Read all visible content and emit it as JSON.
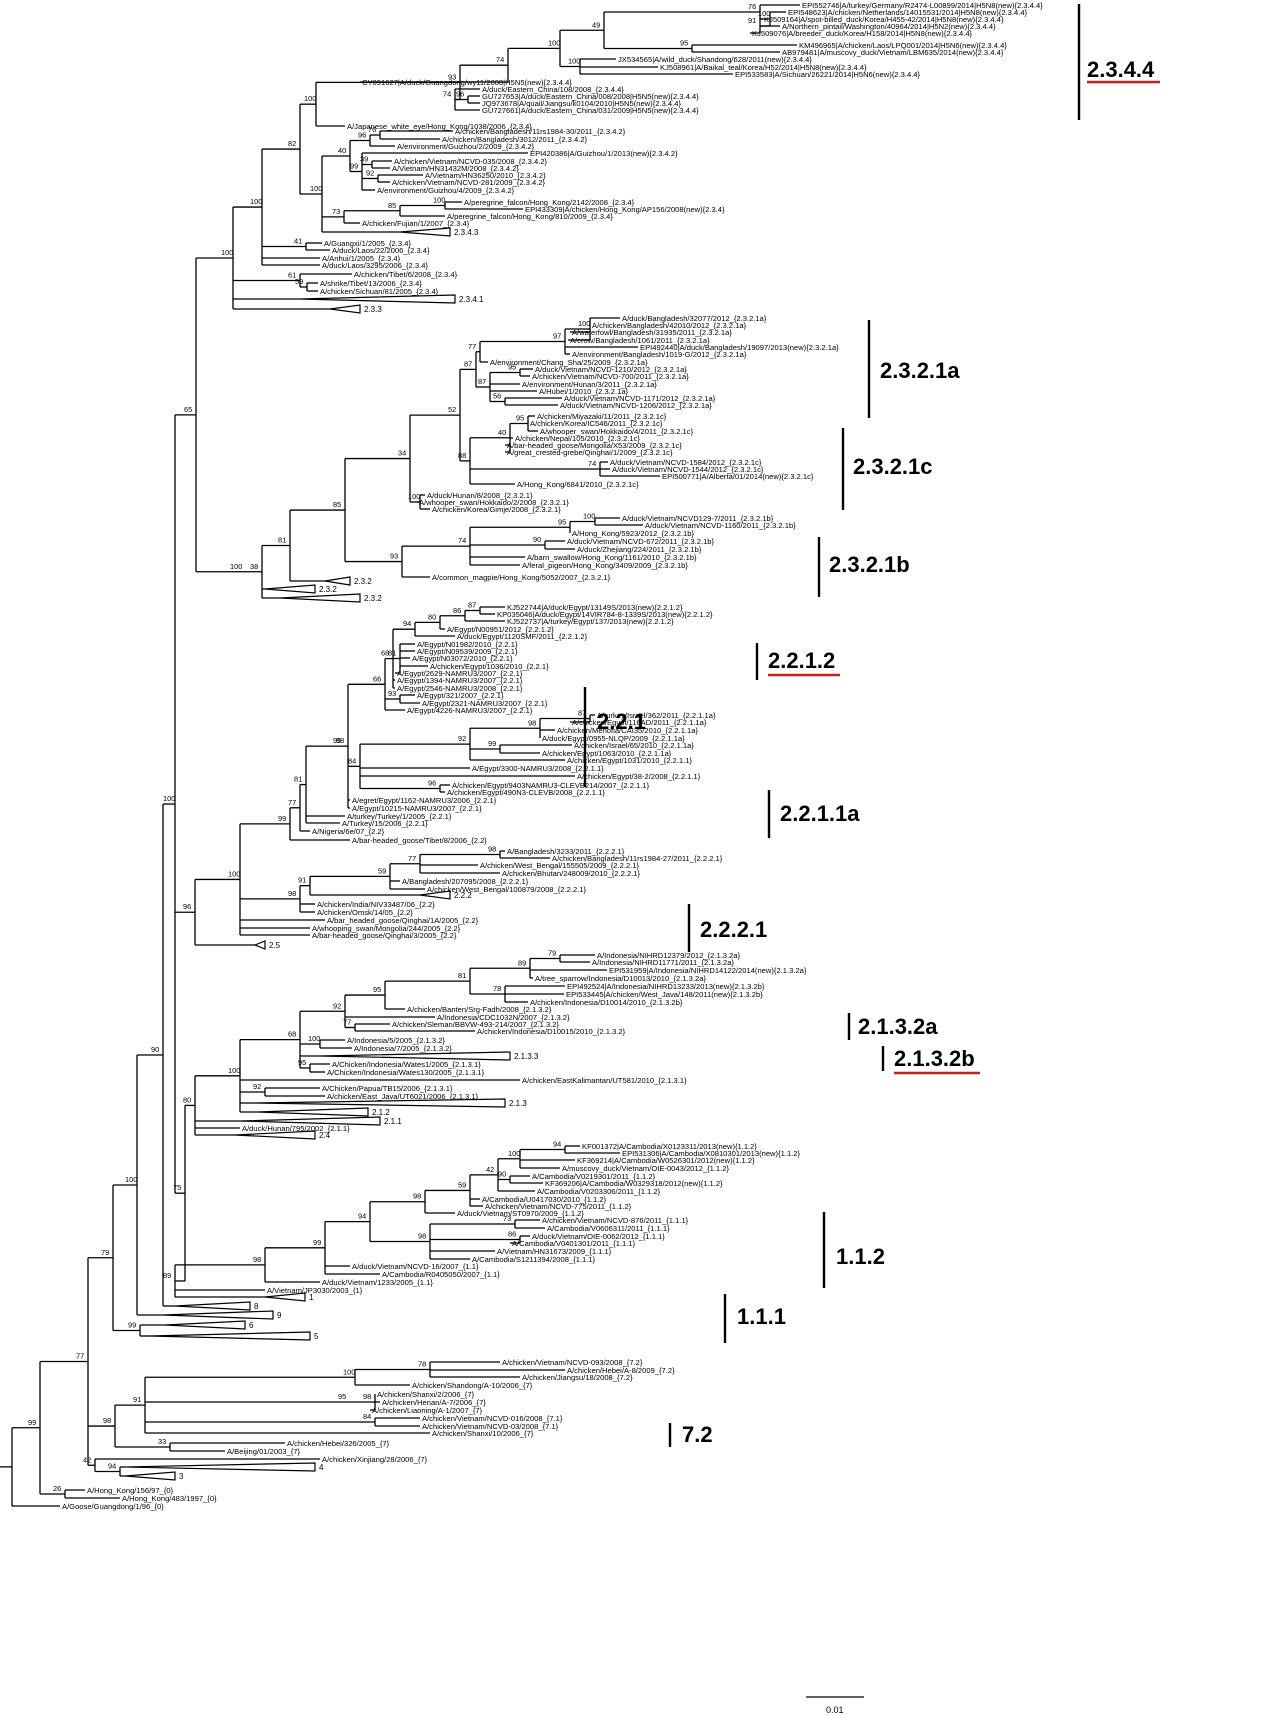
{
  "leaves": {
    "EPI552746": "EPI552746|A/turkey/Germany/R2474-L00899/2014|H5N8(new){2.3.4.4}",
    "EPI548623": "EPI548623|A/chicken/Netherlands/14015531/2014|H5N8(new){2.3.4.4}",
    "KJ509164": "KJ509164|A/spot-billed_duck/Korea/H455-42/2014|H5N8(new){2.3.4.4}",
    "N_pintail": "A/Northern_pintail/Washington/40964/2014|H5N2(new){2.3.4.4}",
    "KJ509076": "KJ509076|A/breeder_duck/Korea/H158/2014|H5N8(new){2.3.4.4}",
    "KM496965": "KM496965|A/chicken/Laos/LPQ001/2014|H5N6(new){2.3.4.4}",
    "AB979481": "AB979481|A/muscovy_duck/Vietnam/LBM635/2014(new){2.3.4.4}",
    "JX534565": "JX534565|A/wild_duck/Shandong/628/2011(new){2.3.4.4}",
    "KJ508961": "KJ508961|A/Baikal_teal/Korea/H52/2014|H5N8(new){2.3.4.4}",
    "EPI533583": "EPI533583|A/Sichuan/26221/2014|H5N6(new){2.3.4.4}",
    "CY091627": "CY091627|A/duck/Guangdong/wy11/2008|H5N5(new){2.3.4.4}",
    "duck_EChina_108": "A/duck/Eastern_China/108/2008_{2.3.4.4}",
    "GU727653": "GU727653|A/duck/Eastern_China/008/2008|H5N5(new){2.3.4.4}",
    "JQ973678": "JQ973678|A/quail/Jiangsu/k0104/2010|H5N5(new){2.3.4.4}",
    "GU727661": "GU727661|A/duck/Eastern_China/031/2009|H5N5(new){2.3.4.4}",
    "jwe_HK_1038": "A/Japanese_white_eye/Hong_Kong/1038/2006_{2.3.4}",
    "Bangladesh_11rs": "A/chicken/Bangladesh/11rs1984-30/2011_{2.3.4.2}",
    "Bangladesh_3012": "A/chicken/Bangladesh/3012/2011_{2.3.4.2}",
    "env_Guizhou_2": "A/environment/Guizhou/2/2009_{2.3.4.2}",
    "EPI420386": "EPI420386|A/Guizhou/1/2013(new){2.3.4.2}",
    "VN_NCVD035": "A/chicken/Vietnam/NCVD-035/2008_{2.3.4.2}",
    "VN_HN31432M": "A/Vietnam/HN31432M/2008_{2.3.4.2}",
    "VN_HN36250": "A/Vietnam/HN36250/2010_{2.3.4.2}",
    "VN_NCVD281": "A/chicken/Vietnam/NCVD-281/2009_{2.3.4.2}",
    "env_Guizhou_4": "A/environment/Guizhou/4/2009_{2.3.4.2}",
    "pf_HK_2142": "A/peregrine_falcon/Hong_Kong/2142/2008_{2.3.4}",
    "EPI433309": "EPI433309|A/chicken/Hong_Kong/AP156/2008(new){2.3.4}",
    "pf_HK_810": "A/peregrine_falcon/Hong_Kong/810/2009_{2.3.4}",
    "Fujian_1": "A/chicken/Fujian/1/2007_{2.3.4}",
    "c_2343": "2.3.4.3",
    "Guangxi_1": "A/Guangxi/1/2005_{2.3.4}",
    "Laos_22": "A/duck/Laos/22/2006_{2.3.4}",
    "Anhui_1": "A/Anhui/1/2005_{2.3.4}",
    "Laos_3295": "A/duck/Laos/3295/2006_{2.3.4}",
    "Tibet_6": "A/chicken/Tibet/6/2008_{2.3.4}",
    "shrike_Tibet": "A/shrike/Tibet/13/2006_{2.3.4}",
    "Sichuan_81": "A/chicken/Sichuan/81/2005_{2.3.4}",
    "c_2341": "2.3.4.1",
    "c_233": "2.3.3",
    "BD_32077": "A/duck/Bangladesh/32077/2012_{2.3.2.1a}",
    "BD_42010": "A/chicken/Bangladesh/42010/2012_{2.3.2.1a}",
    "BD_wf_31935": "A/waterfowl/Bangladesh/31935/2011_{2.3.2.1a}",
    "BD_crow_1061": "A/crow/Bangladesh/1061/2011_{2.3.2.1a}",
    "EPI492440": "EPI492440|A/duck/Bangladesh/19097/2013(new){2.3.2.1a}",
    "BD_env_1019": "A/environment/Bangladesh/1019-G/2012_{2.3.2.1a}",
    "env_ChangSha": "A/environment/Chang_Sha/25/2009_{2.3.2.1a}",
    "VN_NCVD1210": "A/duck/Vietnam/NCVD-1210/2012_{2.3.2.1a}",
    "VN_NCVD700": "A/chicken/Vietnam/NCVD-700/2011_{2.3.2.1a}",
    "env_Hunan_3": "A/environment/Hunan/3/2011_{2.3.2.1a}",
    "Hubei_1": "A/Hubei/1/2010_{2.3.2.1a}",
    "VN_NCVD1171": "A/duck/Vietnam/NCVD-1171/2012_{2.3.2.1a}",
    "VN_NCVD1206": "A/duck/Vietnam/NCVD-1206/2012_{2.3.2.1a}",
    "Miyazaki_11": "A/chicken/Miyazaki/11/2011_{2.3.2.1c}",
    "Korea_IC546": "A/chicken/Korea/IC546/2011_{2.3.2.1c}",
    "ws_Hokkaido_4": "A/whooper_swan/Hokkaido/4/2011_{2.3.2.1c}",
    "Nepal_105": "A/chicken/Nepal/105/2010_{2.3.2.1c}",
    "bhg_Mongolia_X53": "A/bar-headed_goose/Mongolia/X53/2009_{2.3.2.1c}",
    "gcg_Qinghai_1": "A/great_crested-grebe/Qinghai/1/2009_{2.3.2.1c}",
    "VN_NCVD1584": "A/duck/Vietnam/NCVD-1584/2012_{2.3.2.1c}",
    "VN_NCVD1544": "A/duck/Vietnam/NCVD-1544/2012_{2.3.2.1c}",
    "EPI500771": "EPI500771|A/Alberta/01/2014(new){2.3.2.1c}",
    "HK_6841": "A/Hong_Kong/6841/2010_{2.3.2.1c}",
    "Hunan_8": "A/duck/Hunan/8/2008_{2.3.2.1}",
    "ws_Hokkaido_2": "A/whooper_swan/Hokkaido/2/2008_{2.3.2.1}",
    "Korea_Gimje": "A/chicken/Korea/Gimje/2008_{2.3.2.1}",
    "VN_NCVD129": "A/duck/Vietnam/NCVD129-7/2011_{2.3.2.1b}",
    "VN_NCVD1160": "A/duck/Vietnam/NCVD-1160/2011_{2.3.2.1b}",
    "HK_5923": "A/Hong_Kong/5923/2012_{2.3.2.1b}",
    "VN_NCVD672": "A/duck/Vietnam/NCVD-672/2011_{2.3.2.1b}",
    "Zhejiang_224": "A/duck/Zhejiang/224/2011_{2.3.2.1b}",
    "bs_HK_1161": "A/barn_swallow/Hong_Kong/1161/2010_{2.3.2.1b}",
    "fp_HK_3409": "A/feral_pigeon/Hong_Kong/3409/2009_{2.3.2.1b}",
    "cm_HK_5052": "A/common_magpie/Hong_Kong/5052/2007_{2.3.2.1}",
    "c_232a": "2.3.2",
    "c_232b": "2.3.2",
    "c_232c": "2.3.2",
    "KJ522744": "KJ522744|A/duck/Egypt/13149S/2013(new){2.2.1.2}",
    "KP035046": "KP035046|A/duck/Egypt/14VIR784-8-1339S/2013(new){2.2.1.2}",
    "KJ522737": "KJ522737|A/turkey/Egypt/137/2013(new){2.2.1.2}",
    "EG_N00951": "A/Egypt/N00951/2012_{2.2.1.2}",
    "EG_1120SMF": "A/duck/Egypt/1120SMF/2011_{2.2.1.2}",
    "EG_N01982": "A/Egypt/N01982/2010_{2.2.1}",
    "EG_N09539": "A/Egypt/N09539/2009_{2.2.1}",
    "EG_N03072": "A/Egypt/N03072/2010_{2.2.1}",
    "EG_1036": "A/chicken/Egypt/1036/2010_{2.2.1}",
    "EG_2629": "A/Egypt/2629-NAMRU3/2007_{2.2.1}",
    "EG_1394": "A/Egypt/1394-NAMRU3/2007_{2.2.1}",
    "EG_2546": "A/Egypt/2546-NAMRU3/2008_{2.2.1}",
    "EG_321": "A/Egypt/321/2007_{2.2.1}",
    "EG_2321": "A/Egypt/2321-NAMRU3/2007_{2.2.1}",
    "EG_4226": "A/Egypt/4226-NAMRU3/2007_{2.2.1}",
    "IL_362": "A/turkey/Israel/362/2011_{2.2.1.1a}",
    "EG_116AD": "A/chicken/Egypt/116AD/2011_{2.2.1.1a}",
    "EG_Menofia": "A/chicken/Menofia/CAI35/2010_{2.2.1.1a}",
    "EG_0955": "A/duck/Egypt/0955-NLQP/2009_{2.2.1.1a}",
    "IL_65": "A/chicken/Israel/65/2010_{2.2.1.1a}",
    "EG_1063": "A/chicken/Egypt/1063/2010_{2.2.1.1a}",
    "EG_1031": "A/chicken/Egypt/1031/2010_{2.2.1.1}",
    "EG_3300": "A/Egypt/3300-NAMRU3/2008_{2.2.1.1}",
    "EG_38_2": "A/chicken/Egypt/38-2/2008_{2.2.1.1}",
    "EG_9403": "A/chicken/Egypt/9403NAMRU3-CLEVB214/2007_{2.2.1.1}",
    "EG_490N3": "A/chicken/Egypt/490N3-CLEVB/2008_{2.2.1.1}",
    "EG_egret_1162": "A/egret/Egypt/1162-NAMRU3/2006_{2.2.1}",
    "EG_10215": "A/Egypt/10215-NAMRU3/2007_{2.2.1}",
    "turkey_Turkey_1": "A/turkey/Turkey/1/2005_{2.2.1}",
    "Turkey_15": "A/Turkey/15/2006_{2.2.1}",
    "Nigeria_6e07": "A/Nigeria/6e/07_{2.2}",
    "bhg_Tibet_8": "A/bar-headed_goose/Tibet/8/2006_{2.2}",
    "BD_3233": "A/Bangladesh/3233/2011_{2.2.2.1}",
    "BD_11rs_27": "A/chicken/Bangladesh/11rs1984-27/2011_{2.2.2.1}",
    "WB_155505": "A/chicken/West_Bengal/155505/2009_{2.2.2.1}",
    "Bhutan_248009": "A/chicken/Bhutan/248009/2010_{2.2.2.1}",
    "BD_207095": "A/Bangladesh/207095/2008_{2.2.2.1}",
    "WB_100879": "A/chicken/West_Bengal/100879/2008_{2.2.2.1}",
    "c_222": "2.2.2",
    "India_NIV33487": "A/chicken/India/NIV33487/06_{2.2}",
    "Omsk_14": "A/chicken/Omsk/14/05_{2.2}",
    "bhg_Qinghai_1A": "A/bar_headed_goose/Qinghai/1A/2005_{2.2}",
    "ws_Mongolia_244": "A/whooping_swan/Mongolia/244/2005_{2.2}",
    "bhg_Qinghai_3": "A/bar-headed_goose/Qinghai/3/2005_{2.2}",
    "c_25": "2.5",
    "ID_NIHRD12379": "A/Indonesia/NIHRD12379/2012_{2.1.3.2a}",
    "ID_NIHRD11771": "A/Indonesia/NIHRD11771/2011_{2.1.3.2a}",
    "EPI531959": "EPI531959|A/Indonesia/NIHRD14122/2014(new){2.1.3.2a}",
    "ts_ID_D10013": "A/tree_sparrow/Indonesia/D10013/2010_{2.1.3.2a}",
    "EPI492524": "EPI492524|A/Indonesia/NIHRD13233/2013(new){2.1.3.2b}",
    "EPI533445": "EPI533445|A/chicken/West_Java/148/2011(new){2.1.3.2b}",
    "ID_D10014": "A/chicken/Indonesia/D10014/2010_{2.1.3.2b}",
    "Banten_SrgFadh": "A/chicken/Banten/Srg-Fadh/2008_{2.1.3.2}",
    "ID_CDC1032N": "A/Indonesia/CDC1032N/2007_{2.1.3.2}",
    "Sleman_BBVW": "A/chicken/Sleman/BBVW-493-214/2007_{2.1.3.2}",
    "ID_D10015": "A/chicken/Indonesia/D10015/2010_{2.1.3.2}",
    "ID_5_2005": "A/Indonesia/5/2005_{2.1.3.2}",
    "ID_7_2005": "A/Indonesia/7/2005_{2.1.3.2}",
    "c_2133": "2.1.3.3",
    "Wates1": "A/Chicken/Indonesia/Wates1/2005_{2.1.3.1}",
    "Wates130": "A/Chicken/Indonesia/Wates130/2005_{2.1.3.1}",
    "EastKal_UT581": "A/chicken/EastKalimantan/UT581/2010_{2.1.3.1}",
    "Papua_TB15": "A/Chicken/Papua/TB15/2006_{2.1.3.1}",
    "EastJava_UT6021": "A/chicken/East_Java/UT6021/2006_{2.1.3.1}",
    "c_213": "2.1.3",
    "c_212": "2.1.2",
    "c_211": "2.1.1",
    "Hunan_795": "A/duck/Hunan/795/2002_{2.1.1}",
    "c_24": "2.4",
    "KF001372": "KF001372|A/Cambodia/X0123311/2013(new){1.1.2}",
    "EPI531306": "EPI531306|A/Cambodia/X0810301/2013(new){1.1.2}",
    "KF369214": "KF369214|A/Cambodia/W0526301/2012(new){1.1.2}",
    "md_VN_OIE0043": "A/muscovy_duck/Vietnam/OIE-0043/2012_{1.1.2}",
    "KH_V0219301": "A/Cambodia/V0219301/2011_{1.1.2}",
    "KF369206": "KF369206|A/Cambodia/W0329318/2012(new){1.1.2}",
    "KH_V0203306": "A/Cambodia/V0203306/2011_{1.1.2}",
    "KH_U0417030": "A/Cambodia/U0417030/2010_{1.1.2}",
    "VN_NCVD775": "A/chicken/Vietnam/NCVD-775/2011_{1.1.2}",
    "VN_ST0970": "A/duck/Vietnam/ST0970/2009_{1.1.2}",
    "VN_NCVD876": "A/chicken/Vietnam/NCVD-876/2011_{1.1.1}",
    "KH_V0606311": "A/Cambodia/V0606311/2011_{1.1.1}",
    "VN_OIE0062": "A/duck/Vietnam/OIE-0062/2012_{1.1.1}",
    "KH_V0401301": "A/Cambodia/V0401301/2011_{1.1.1}",
    "VN_HN31673": "A/Vietnam/HN31673/2009_{1.1.1}",
    "KH_S1211394": "A/Cambodia/S1211394/2008_{1.1.1}",
    "VN_NCVD16": "A/duck/Vietnam/NCVD-16/2007_{1.1}",
    "KH_R0405050": "A/Cambodia/R0405050/2007_{1.1}",
    "VN_1233": "A/duck/Vietnam/1233/2005_{1.1}",
    "VN_JP3030": "A/Vietnam/JP3030/2003_{1}",
    "c_1": "1",
    "c_8": "8",
    "c_9": "9",
    "c_6": "6",
    "c_5": "5",
    "VN_NCVD093": "A/chicken/Vietnam/NCVD-093/2008_{7.2}",
    "Hebei_A8": "A/chicken/Hebei/A-8/2009_{7.2}",
    "Jiangsu_18": "A/chicken/Jiangsu/18/2008_{7.2}",
    "Shandong_A10": "A/chicken/Shandong/A-10/2006_{7}",
    "Shanxi_2": "A/chicken/Shanxi/2/2006_{7}",
    "Henan_A7": "A/chicken/Henan/A-7/2006_{7}",
    "Liaoning_A1": "A/chicken/Liaoning/A-1/2007_{7}",
    "VN_NCVD016": "A/chicken/Vietnam/NCVD-016/2008_{7.1}",
    "VN_NCVD03": "A/chicken/Vietnam/NCVD-03/2008_{7.1}",
    "Shanxi_10": "A/chicken/Shanxi/10/2006_{7}",
    "Hebei_326": "A/chicken/Hebei/326/2005_{7}",
    "Beijing_01": "A/Beijing/01/2003_{7}",
    "Xinjiang_28": "A/chicken/Xinjiang/28/2006_{7}",
    "c_4": "4",
    "c_3": "3",
    "HK_156": "A/Hong_Kong/156/97_{0}",
    "HK_483": "A/Hong_Kong/483/1997_{0}",
    "Goose_GD": "A/Goose/Guangdong/1/96_{0}"
  },
  "supports": [
    "99",
    "77",
    "79",
    "100",
    "90",
    "100",
    "65",
    "100",
    "100",
    "82",
    "100",
    "93",
    "74",
    "100",
    "49",
    "76",
    "100",
    "91",
    "95",
    "100",
    "74",
    "96",
    "100",
    "40",
    "96",
    "76",
    "99",
    "39",
    "92",
    "73",
    "85",
    "100",
    "41",
    "61",
    "59",
    "100",
    "38",
    "81",
    "85",
    "34",
    "52",
    "87",
    "77",
    "97",
    "100",
    "87",
    "95",
    "56",
    "88",
    "40",
    "95",
    "74",
    "100",
    "93",
    "74",
    "95",
    "100",
    "90",
    "96",
    "100",
    "99",
    "77",
    "81",
    "95",
    "98",
    "66",
    "68",
    "94",
    "80",
    "86",
    "87",
    "81",
    "93",
    "84",
    "92",
    "98",
    "87",
    "99",
    "96",
    "98",
    "91",
    "59",
    "77",
    "98",
    "75",
    "80",
    "100",
    "68",
    "92",
    "95",
    "81",
    "89",
    "79",
    "78",
    "77",
    "100",
    "95",
    "92",
    "89",
    "98",
    "99",
    "94",
    "98",
    "59",
    "42",
    "100",
    "94",
    "90",
    "98",
    "73",
    "86",
    "99",
    "98",
    "91",
    "100",
    "78",
    "95",
    "98",
    "84",
    "33",
    "42",
    "94",
    "26",
    "99",
    "75",
    "87",
    "90",
    "90",
    "98",
    "100",
    "94",
    "86",
    "88",
    "100",
    "91",
    "89",
    "83",
    "99",
    "100",
    "76",
    "95",
    "97",
    "60",
    "73",
    "100",
    "90",
    "42",
    "100",
    "75",
    "28",
    "99",
    "81",
    "100",
    "99",
    "77",
    "75",
    "99",
    "100"
  ],
  "collapsed_labels": [
    "2.3.4.3",
    "2.3.4.1",
    "2.3.3",
    "2.3.2",
    "2.3.2",
    "2.3.2",
    "2.2.2",
    "2.5",
    "2.1.3.3",
    "2.1.3",
    "2.1.2",
    "2.1.1",
    "2.4",
    "1",
    "8",
    "9",
    "6",
    "5",
    "4",
    "3"
  ],
  "clades": {
    "c2344": "2.3.4.4",
    "c2321a": "2.3.2.1a",
    "c2321c": "2.3.2.1c",
    "c2321b": "2.3.2.1b",
    "c2212": "2.2.1.2",
    "c221": "2.2.1",
    "c2211a": "2.2.1.1a",
    "c2221": "2.2.2.1",
    "c2132a": "2.1.3.2a",
    "c2132b": "2.1.3.2b",
    "c112": "1.1.2",
    "c111": "1.1.1",
    "c72": "7.2"
  },
  "scale_bar": {
    "label": "0.01"
  },
  "colors": {
    "underline": "#c81e1e",
    "lines": "#000000"
  }
}
